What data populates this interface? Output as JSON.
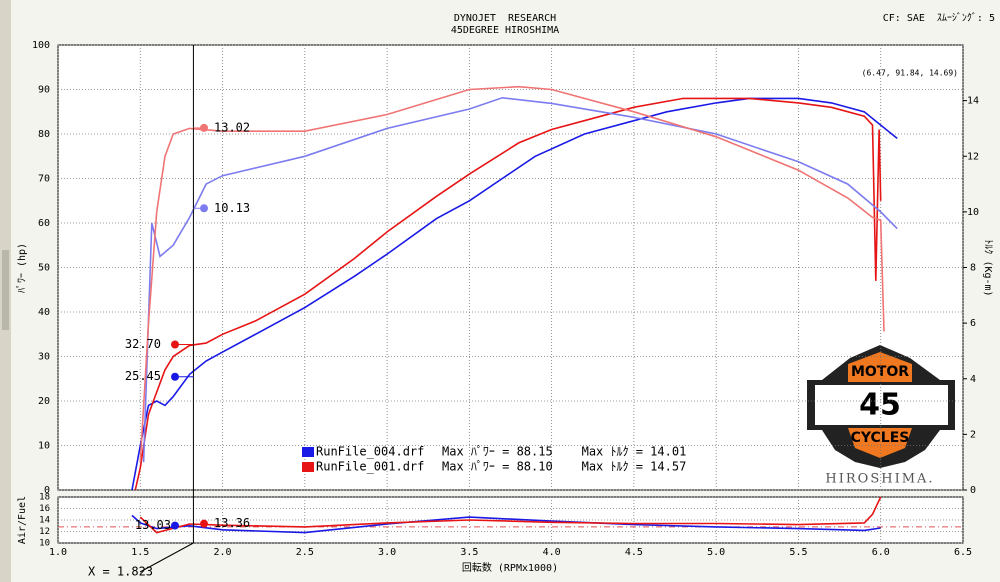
{
  "header": {
    "line1": "DYNOJET  RESEARCH",
    "line2": "45DEGREE HIROSHIMA",
    "cf": "CF: SAE  ｽﾑｰｼﾞﾝｸﾞ: 5"
  },
  "logo": {
    "top": "MOTOR",
    "middle": "45",
    "bottom": "CYCLES",
    "brand": "HIROSHIMA."
  },
  "chart_data": [
    {
      "type": "line",
      "ylabel": "ﾊﾟﾜｰ (hp)",
      "y2label": "ﾄﾙｸ (Kg-m)",
      "coords": "(6.47, 91.84, 14.69)",
      "xlim": [
        1,
        6.5
      ],
      "xticks": [
        {
          "value": 1,
          "label": "1.0"
        },
        1.5,
        {
          "value": 2,
          "label": "2.0"
        },
        2.5,
        {
          "value": 3,
          "label": "3.0"
        },
        3.5,
        {
          "value": 4,
          "label": "4.0"
        },
        4.5,
        {
          "value": 5,
          "label": "5.0"
        },
        5.5,
        {
          "value": 6,
          "label": "6.0"
        },
        6.5
      ],
      "ylim": [
        0,
        100
      ],
      "yticks": [
        0,
        10,
        20,
        30,
        40,
        50,
        60,
        70,
        80,
        90,
        100
      ],
      "y2lim": [
        0,
        16
      ],
      "y2ticks": [
        0,
        2,
        4,
        6,
        8,
        10,
        12,
        14
      ],
      "grid": true,
      "series": [
        {
          "color": "#1a1ae6",
          "axis": "y",
          "x": [
            1.45,
            1.5,
            1.55,
            1.6,
            1.65,
            1.7,
            1.8,
            1.9,
            2.0,
            2.2,
            2.5,
            2.8,
            3.0,
            3.3,
            3.5,
            3.7,
            3.9,
            4.2,
            4.5,
            4.7,
            5.0,
            5.2,
            5.5,
            5.7,
            5.9,
            6.0,
            6.1
          ],
          "values": [
            0,
            10,
            19,
            20,
            19,
            21,
            26,
            29,
            31,
            35,
            41,
            48,
            53,
            61,
            65,
            70,
            75,
            80,
            83,
            85,
            87,
            88,
            88,
            87,
            85,
            82,
            79
          ]
        },
        {
          "color": "#e61414",
          "axis": "y",
          "x": [
            1.47,
            1.5,
            1.55,
            1.6,
            1.65,
            1.7,
            1.8,
            1.9,
            2.0,
            2.2,
            2.5,
            2.8,
            3.0,
            3.3,
            3.5,
            3.8,
            4.0,
            4.3,
            4.5,
            4.8,
            5.0,
            5.2,
            5.5,
            5.7,
            5.9,
            5.95,
            5.97,
            5.99,
            6.0
          ],
          "values": [
            0,
            5,
            17,
            22,
            27,
            30,
            32.5,
            33,
            35,
            38,
            44,
            52,
            58,
            66,
            71,
            78,
            81,
            84,
            86,
            88,
            88,
            88,
            87,
            86,
            84,
            82,
            47,
            81,
            65
          ]
        },
        {
          "color": "#7c7cf0",
          "axis": "y2",
          "x": [
            1.52,
            1.57,
            1.62,
            1.7,
            1.8,
            1.9,
            2.0,
            2.5,
            3.0,
            3.5,
            3.7,
            4.0,
            4.5,
            5.0,
            5.5,
            5.8,
            6.0,
            6.1
          ],
          "values": [
            1,
            9.6,
            8.4,
            8.8,
            9.8,
            11,
            11.3,
            12,
            13,
            13.7,
            14.1,
            13.9,
            13.4,
            12.8,
            11.8,
            11,
            10,
            9.4
          ]
        },
        {
          "color": "#f07474",
          "axis": "y2",
          "x": [
            1.5,
            1.55,
            1.6,
            1.65,
            1.7,
            1.8,
            2.0,
            2.5,
            3.0,
            3.5,
            3.8,
            4.0,
            4.5,
            5.0,
            5.5,
            5.8,
            5.95,
            6.0,
            6.02
          ],
          "values": [
            1,
            6,
            10,
            12,
            12.8,
            13,
            12.9,
            12.9,
            13.5,
            14.4,
            14.5,
            14.4,
            13.6,
            12.7,
            11.5,
            10.5,
            9.8,
            9.7,
            5.7
          ]
        }
      ],
      "legend": [
        {
          "name": "RunFile_004.drf",
          "text": "Max ﾊﾟﾜｰ = 88.15    Max ﾄﾙｸ = 14.01",
          "color": "#1a1ae6"
        },
        {
          "name": "RunFile_001.drf",
          "text": "Max ﾊﾟﾜｰ = 88.10    Max ﾄﾙｸ = 14.57",
          "color": "#e61414"
        }
      ],
      "cursor": {
        "x": 1.823,
        "label": "X = 1.823",
        "readouts": [
          {
            "value": 13.02,
            "label": "13.02",
            "axis": "y2",
            "color": "#f07474"
          },
          {
            "value": 10.13,
            "label": "10.13",
            "axis": "y2",
            "color": "#7c7cf0"
          },
          {
            "value": 32.7,
            "label": "32.70",
            "axis": "y",
            "color": "#e61414"
          },
          {
            "value": 25.45,
            "label": "25.45",
            "axis": "y",
            "color": "#1a1ae6"
          }
        ]
      }
    },
    {
      "type": "line",
      "ylabel": "Air/Fuel",
      "xlabel": "回転数 (RPMx1000)",
      "xlim": [
        1,
        6.5
      ],
      "ylim": [
        10,
        18
      ],
      "yticks": [
        10,
        12,
        14,
        16,
        18
      ],
      "ref_line": 12.8,
      "grid": true,
      "series": [
        {
          "color": "#1a1ae6",
          "x": [
            1.45,
            1.5,
            1.6,
            1.8,
            2.0,
            2.5,
            3.0,
            3.5,
            4.0,
            4.5,
            5.0,
            5.5,
            5.9,
            6.0
          ],
          "values": [
            14.8,
            13.5,
            12.5,
            13,
            12.3,
            11.8,
            13.3,
            14.5,
            13.8,
            13.2,
            12.8,
            12.5,
            12.2,
            12.6
          ]
        },
        {
          "color": "#e61414",
          "x": [
            1.5,
            1.6,
            1.8,
            2.0,
            2.5,
            3.0,
            3.5,
            4.0,
            4.5,
            5.0,
            5.5,
            5.9,
            5.95,
            6.0
          ],
          "values": [
            14.5,
            11.8,
            13.3,
            13.1,
            12.8,
            13.5,
            14,
            13.6,
            13.4,
            13.4,
            13.2,
            13.5,
            15,
            18
          ]
        }
      ],
      "readouts": [
        {
          "value": 13.03,
          "label": "13.03",
          "color": "#1a1ae6"
        },
        {
          "value": 13.36,
          "label": "13.36",
          "color": "#e61414"
        }
      ]
    }
  ]
}
